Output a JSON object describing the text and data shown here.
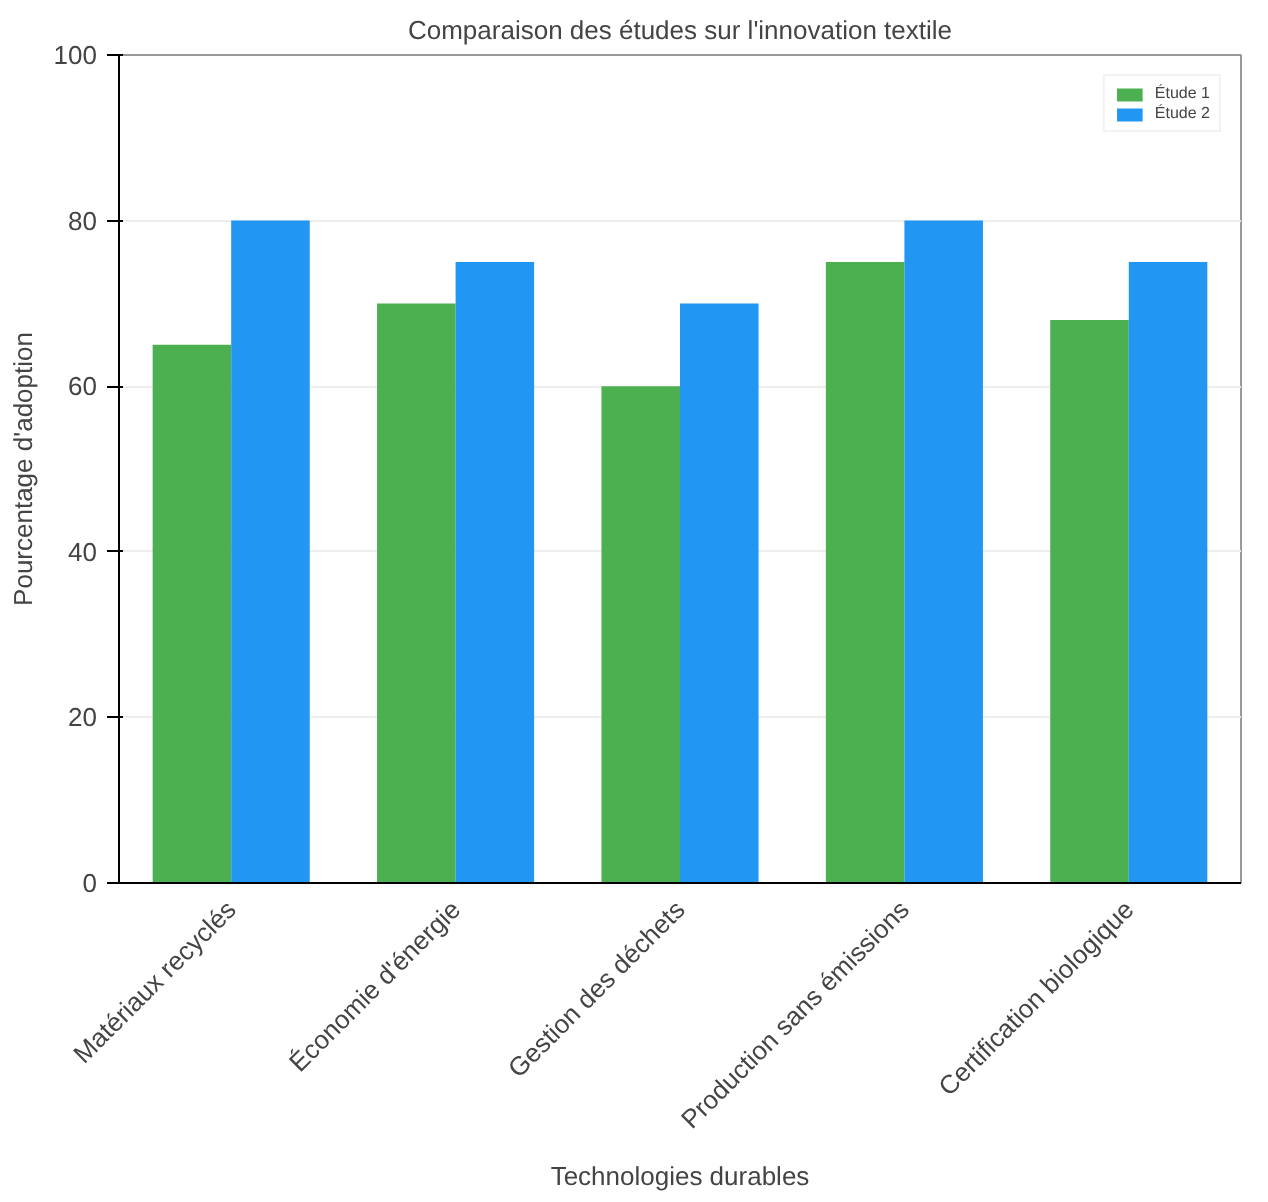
{
  "chart_data": {
    "type": "bar",
    "title": "Comparaison des études sur l'innovation textile",
    "xlabel": "Technologies durables",
    "ylabel": "Pourcentage d'adoption",
    "categories": [
      "Matériaux recyclés",
      "Économie d'énergie",
      "Gestion des déchets",
      "Production sans émissions",
      "Certification biologique"
    ],
    "series": [
      {
        "name": "Étude 1",
        "color": "#4caf50",
        "values": [
          65,
          70,
          60,
          75,
          68
        ]
      },
      {
        "name": "Étude 2",
        "color": "#2196f3",
        "values": [
          80,
          75,
          70,
          80,
          75
        ]
      }
    ],
    "ylim": [
      0,
      100
    ],
    "yticks": [
      0,
      20,
      40,
      60,
      80,
      100
    ],
    "grid": "y",
    "legend": "top right"
  }
}
